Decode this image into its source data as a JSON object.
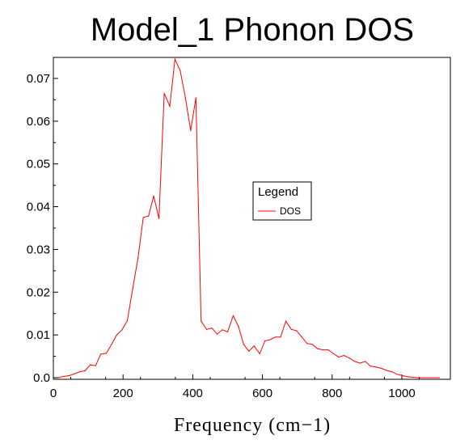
{
  "chart_data": {
    "type": "line",
    "title": "Model_1 Phonon DOS",
    "xlabel": "Frequency (cm−1)",
    "ylabel": "",
    "xlim": [
      0,
      1140
    ],
    "ylim": [
      0,
      0.0745
    ],
    "xticks": [
      0,
      200,
      400,
      600,
      800,
      1000
    ],
    "xtick_labels": [
      "0",
      "200",
      "400",
      "600",
      "800",
      "1000"
    ],
    "yticks": [
      0.0,
      0.01,
      0.02,
      0.03,
      0.04,
      0.05,
      0.06,
      0.07
    ],
    "ytick_labels": [
      "0.0",
      "0.01",
      "0.02",
      "0.03",
      "0.04",
      "0.05",
      "0.06",
      "0.07"
    ],
    "grid": false,
    "legend": {
      "title": "Legend",
      "position": "center-right"
    },
    "series": [
      {
        "name": "DOS",
        "color": "#ff0000",
        "x": [
          15,
          30,
          46,
          61,
          76,
          91,
          106,
          121,
          136,
          152,
          167,
          182,
          197,
          212,
          228,
          243,
          258,
          273,
          288,
          303,
          318,
          334,
          349,
          364,
          379,
          394,
          409,
          424,
          440,
          455,
          470,
          485,
          500,
          516,
          531,
          546,
          561,
          576,
          592,
          607,
          622,
          637,
          652,
          667,
          683,
          698,
          713,
          728,
          743,
          758,
          774,
          789,
          804,
          819,
          834,
          849,
          865,
          880,
          895,
          910,
          925,
          941,
          956,
          971,
          986,
          1001,
          1017,
          1032,
          1047,
          1062,
          1077,
          1093,
          1108
        ],
        "y": [
          0.0,
          0.0003,
          0.0005,
          0.0009,
          0.0014,
          0.0016,
          0.003,
          0.0028,
          0.0055,
          0.0057,
          0.0078,
          0.01,
          0.0112,
          0.0133,
          0.021,
          0.028,
          0.0375,
          0.0378,
          0.0425,
          0.0372,
          0.0665,
          0.0635,
          0.0745,
          0.0718,
          0.0655,
          0.0578,
          0.0655,
          0.0132,
          0.0113,
          0.0116,
          0.0102,
          0.0112,
          0.0107,
          0.0145,
          0.012,
          0.0078,
          0.0062,
          0.0074,
          0.0056,
          0.0086,
          0.0089,
          0.0095,
          0.0095,
          0.0132,
          0.0113,
          0.011,
          0.0095,
          0.008,
          0.0078,
          0.0068,
          0.0065,
          0.0065,
          0.0056,
          0.0048,
          0.0052,
          0.0046,
          0.0038,
          0.0034,
          0.0038,
          0.0027,
          0.0025,
          0.0022,
          0.0017,
          0.0014,
          0.0008,
          0.0005,
          0.0002,
          0.0001,
          0.0,
          0.0,
          0.0,
          0.0,
          0.0
        ]
      }
    ]
  }
}
